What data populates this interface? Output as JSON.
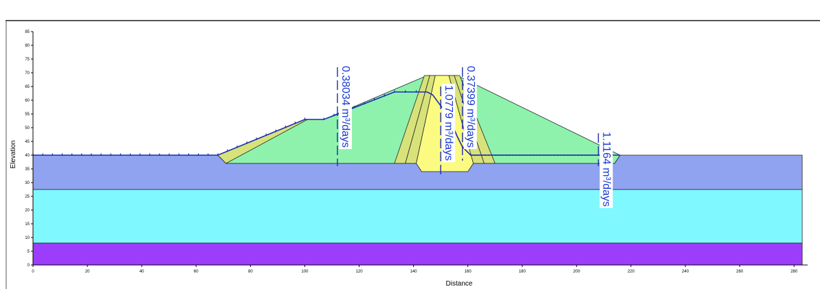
{
  "colors": {
    "foundation_top": "#8fa3f0",
    "foundation_mid": "#7ff8ff",
    "foundation_bottom": "#9b3dfa",
    "shell": "#8ef2ad",
    "filter_core": "#fbfb82",
    "filter_band": "#d7e27a",
    "water_line": "#1a2bb0",
    "flux_label": "#1a3ad6"
  },
  "chart_data": {
    "type": "cross-section",
    "xlabel": "Distance",
    "ylabel": "Elevation",
    "xlim": [
      0,
      285
    ],
    "ylim": [
      0,
      85
    ],
    "x_ticks": [
      0,
      20,
      40,
      60,
      80,
      100,
      120,
      140,
      160,
      180,
      200,
      220,
      240,
      260,
      280
    ],
    "y_ticks": [
      0,
      5,
      10,
      15,
      20,
      25,
      30,
      35,
      40,
      45,
      50,
      55,
      60,
      65,
      70,
      75,
      80,
      85
    ],
    "regions": [
      {
        "material": "foundation_bottom",
        "polygon": [
          [
            0,
            0
          ],
          [
            283,
            0
          ],
          [
            283,
            8
          ],
          [
            0,
            8
          ]
        ]
      },
      {
        "material": "foundation_mid",
        "polygon": [
          [
            0,
            8
          ],
          [
            283,
            8
          ],
          [
            283,
            27.5
          ],
          [
            0,
            27.5
          ]
        ]
      },
      {
        "material": "foundation_top",
        "polygon": [
          [
            0,
            27.5
          ],
          [
            283,
            27.5
          ],
          [
            283,
            40
          ],
          [
            216,
            40
          ],
          [
            214,
            37
          ],
          [
            71,
            37
          ],
          [
            68,
            40
          ],
          [
            0,
            40
          ]
        ]
      },
      {
        "material": "shell",
        "polygon": [
          [
            68,
            40
          ],
          [
            100,
            53
          ],
          [
            107,
            53
          ],
          [
            145,
            69
          ],
          [
            156,
            69
          ],
          [
            216,
            40
          ],
          [
            214,
            37
          ],
          [
            71,
            37
          ]
        ]
      },
      {
        "material": "filter_band",
        "polygon": [
          [
            68,
            40
          ],
          [
            100,
            53
          ],
          [
            101,
            53
          ],
          [
            71,
            37
          ]
        ]
      },
      {
        "material": "filter_band",
        "polygon": [
          [
            133,
            37
          ],
          [
            144,
            69
          ],
          [
            146,
            69
          ],
          [
            137,
            37
          ]
        ]
      },
      {
        "material": "filter_band",
        "polygon": [
          [
            137,
            37
          ],
          [
            146,
            69
          ],
          [
            148,
            69
          ],
          [
            141,
            37
          ]
        ]
      },
      {
        "material": "filter_band",
        "polygon": [
          [
            162,
            37
          ],
          [
            153,
            69
          ],
          [
            155,
            69
          ],
          [
            166,
            37
          ]
        ]
      },
      {
        "material": "filter_band",
        "polygon": [
          [
            166,
            37
          ],
          [
            155,
            69
          ],
          [
            157,
            69
          ],
          [
            170,
            37
          ]
        ]
      },
      {
        "material": "filter_core",
        "polygon": [
          [
            141,
            37
          ],
          [
            148,
            69
          ],
          [
            153,
            69
          ],
          [
            162,
            37
          ],
          [
            160,
            34
          ],
          [
            143,
            34
          ]
        ]
      }
    ],
    "water_table": [
      [
        0,
        40
      ],
      [
        68,
        40
      ],
      [
        100,
        53
      ],
      [
        107,
        53
      ],
      [
        133,
        63
      ],
      [
        145,
        63
      ],
      [
        147,
        62
      ],
      [
        150,
        58
      ],
      [
        153,
        54
      ],
      [
        156,
        47
      ],
      [
        158,
        43
      ],
      [
        161,
        40
      ],
      [
        216,
        40
      ]
    ],
    "flux_sections": [
      {
        "label": "0.38034 m³/days",
        "x": 112,
        "y_top": 72,
        "y_bottom": 36
      },
      {
        "label": "1.0779 m³/days",
        "x": 150,
        "y_top": 65,
        "y_bottom": 33
      },
      {
        "label": "0.37399 m³/days",
        "x": 158,
        "y_top": 72,
        "y_bottom": 38
      },
      {
        "label": "1.1164 m³/days",
        "x": 208,
        "y_top": 48,
        "y_bottom": 36
      }
    ]
  }
}
